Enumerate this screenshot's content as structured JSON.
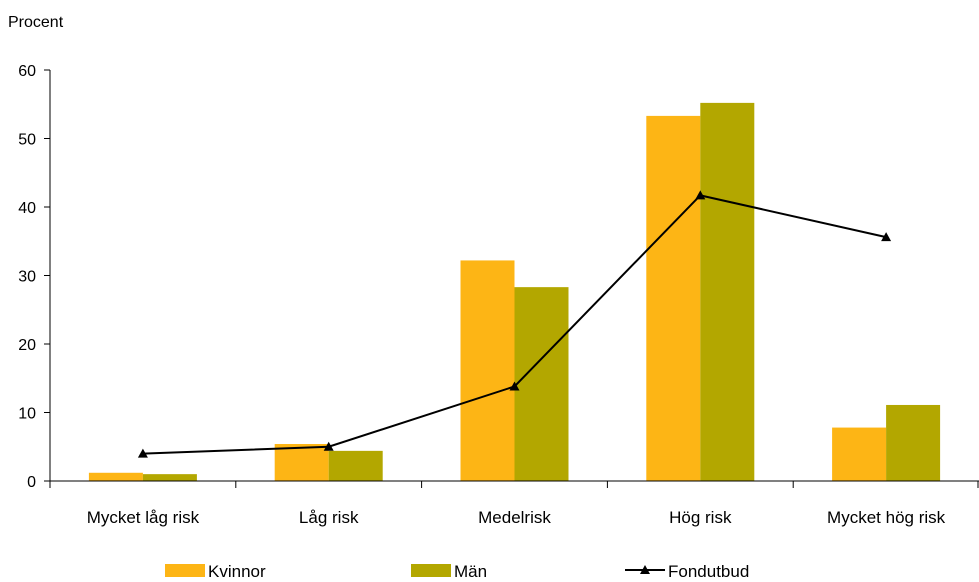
{
  "chart_data": {
    "type": "bar",
    "ylabel": "Procent",
    "ylim": [
      0,
      60
    ],
    "yticks": [
      0,
      10,
      20,
      30,
      40,
      50,
      60
    ],
    "categories": [
      "Mycket låg risk",
      "Låg risk",
      "Medelrisk",
      "Hög risk",
      "Mycket hög risk"
    ],
    "series": [
      {
        "name": "Kvinnor",
        "type": "bar",
        "color": "#FDB515",
        "values": [
          1.2,
          5.4,
          32.2,
          53.3,
          7.8
        ]
      },
      {
        "name": "Män",
        "type": "bar",
        "color": "#B3A700",
        "values": [
          1.0,
          4.4,
          28.3,
          55.2,
          11.1
        ]
      },
      {
        "name": "Fondutbud",
        "type": "line",
        "marker": "triangle",
        "color": "#000000",
        "values": [
          4.0,
          5.0,
          13.8,
          41.7,
          35.6
        ]
      }
    ],
    "legend_position": "bottom",
    "grid": false
  }
}
